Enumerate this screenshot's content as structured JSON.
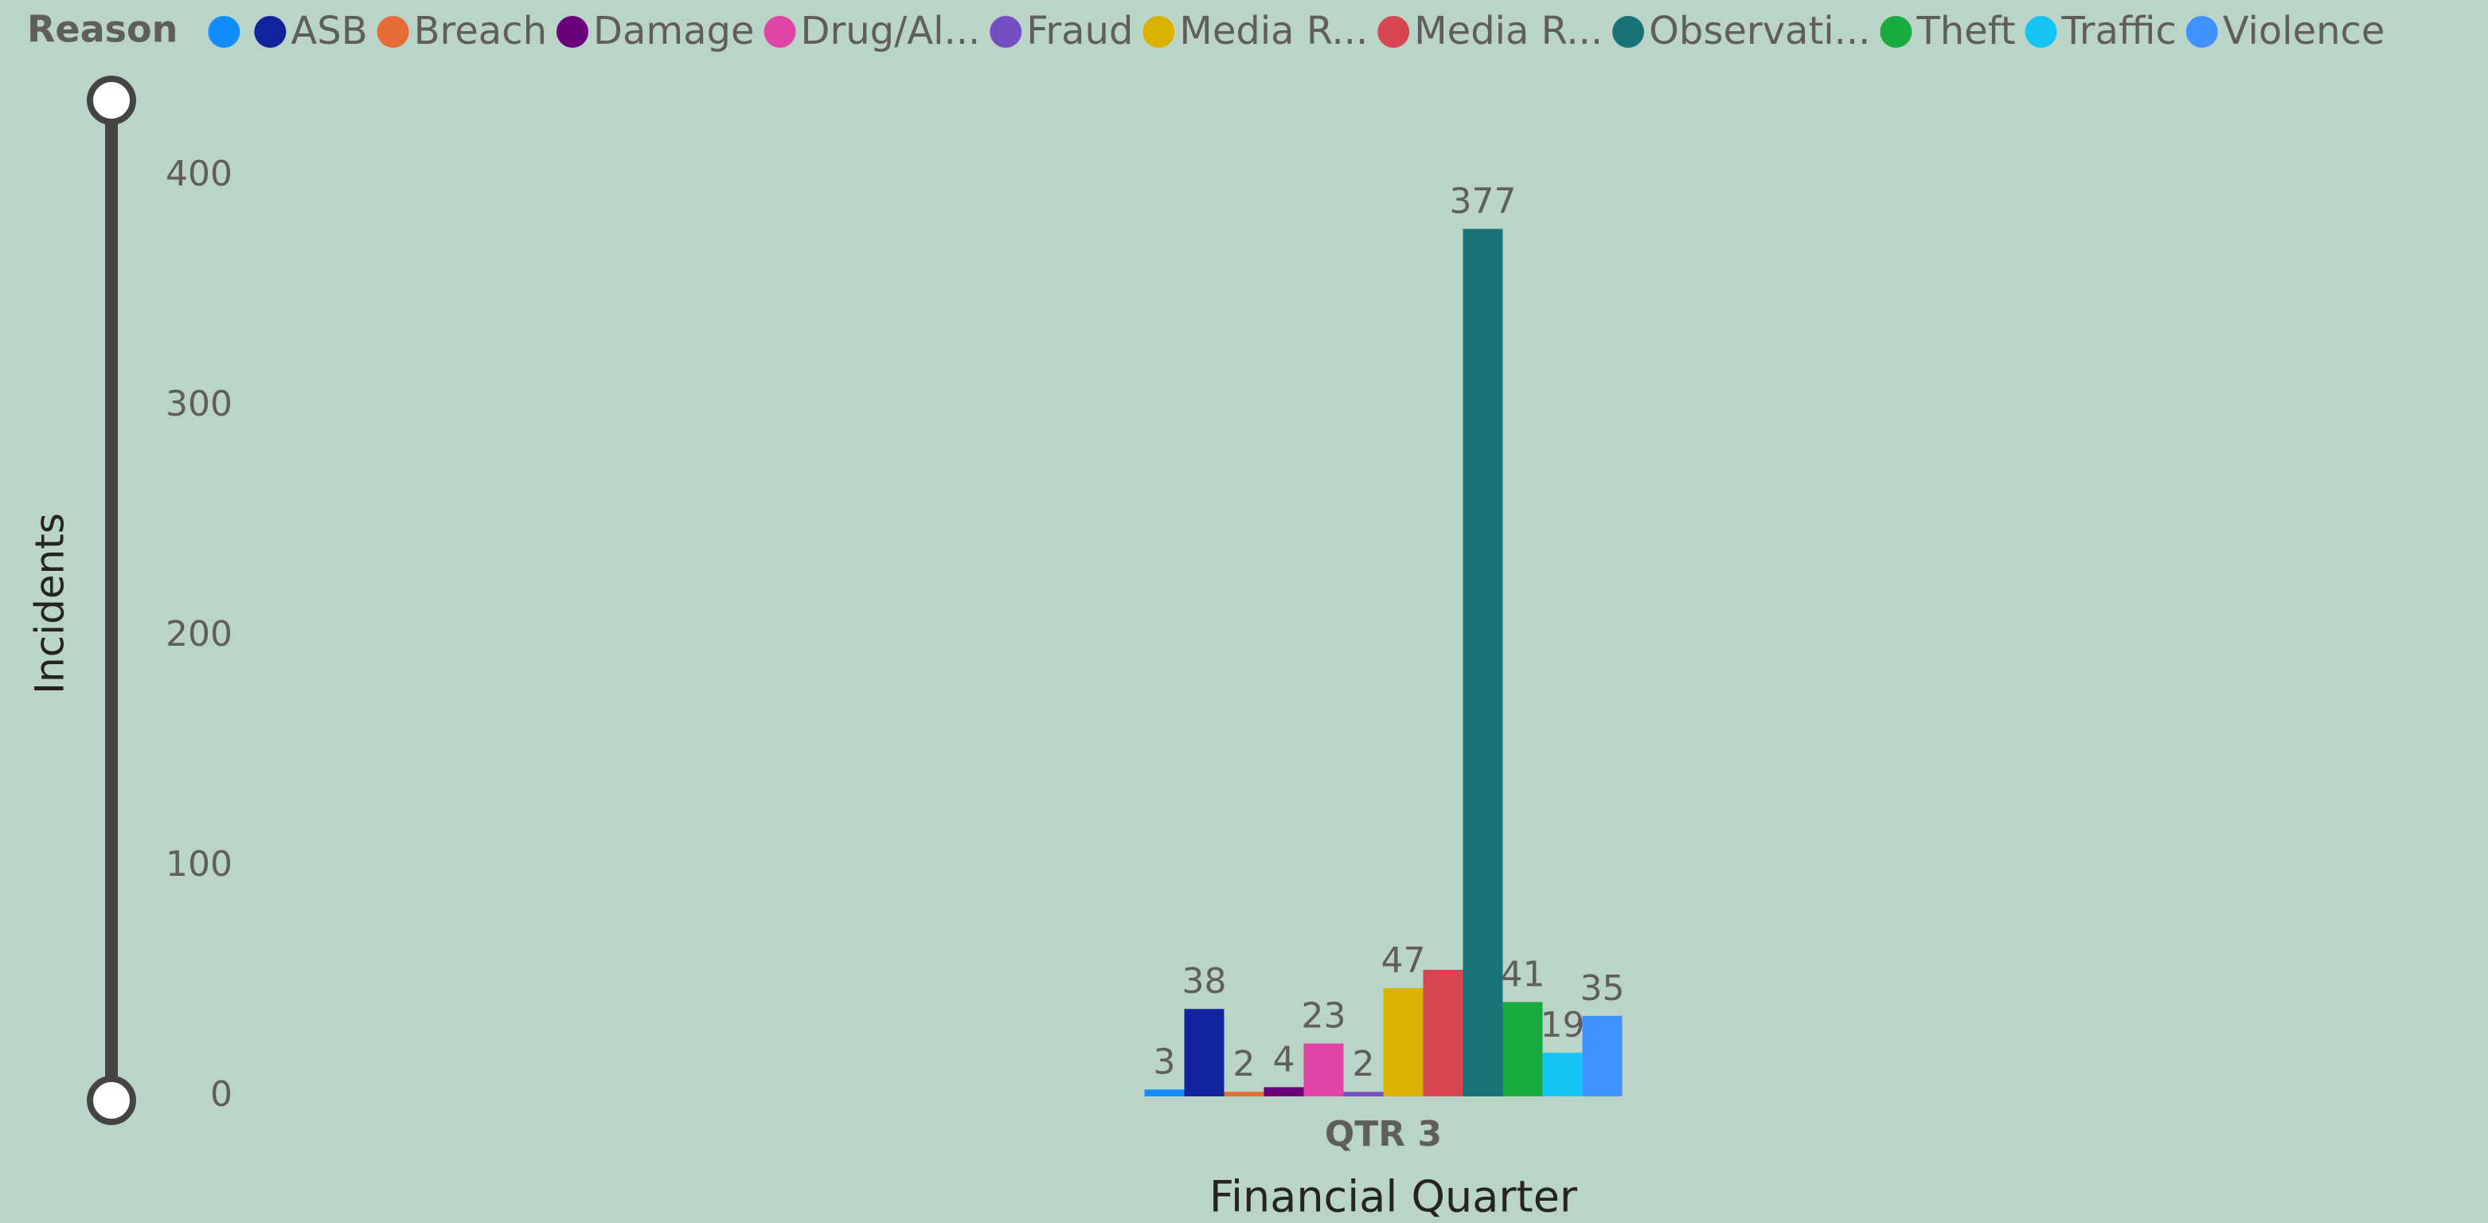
{
  "chart_data": {
    "type": "bar",
    "legend_title": "Reason",
    "x_label": "Financial Quarter",
    "y_label": "Incidents",
    "categories": [
      "QTR 3"
    ],
    "ylim": [
      0,
      400
    ],
    "yticks": [
      0,
      100,
      200,
      300,
      400
    ],
    "series": [
      {
        "name": null,
        "color": "#118dff",
        "values": [
          3
        ]
      },
      {
        "name": "ASB",
        "color": "#12239e",
        "values": [
          38
        ]
      },
      {
        "name": "Breach",
        "color": "#e66c37",
        "values": [
          2
        ]
      },
      {
        "name": "Damage",
        "color": "#6b007b",
        "values": [
          4
        ]
      },
      {
        "name": "Drug/Al...",
        "color": "#e044a7",
        "values": [
          23
        ]
      },
      {
        "name": "Fraud",
        "color": "#744ec2",
        "values": [
          2
        ]
      },
      {
        "name": "Media R...",
        "color": "#d9b300",
        "values": [
          47
        ]
      },
      {
        "name": "Media R...",
        "color": "#d64550",
        "values": [
          55
        ],
        "data_label": false
      },
      {
        "name": "Observati...",
        "color": "#197278",
        "values": [
          377
        ]
      },
      {
        "name": "Theft",
        "color": "#1aab40",
        "values": [
          41
        ]
      },
      {
        "name": "Traffic",
        "color": "#15c6f4",
        "values": [
          19
        ]
      },
      {
        "name": "Violence",
        "color": "#4092ff",
        "values": [
          35
        ]
      }
    ]
  }
}
